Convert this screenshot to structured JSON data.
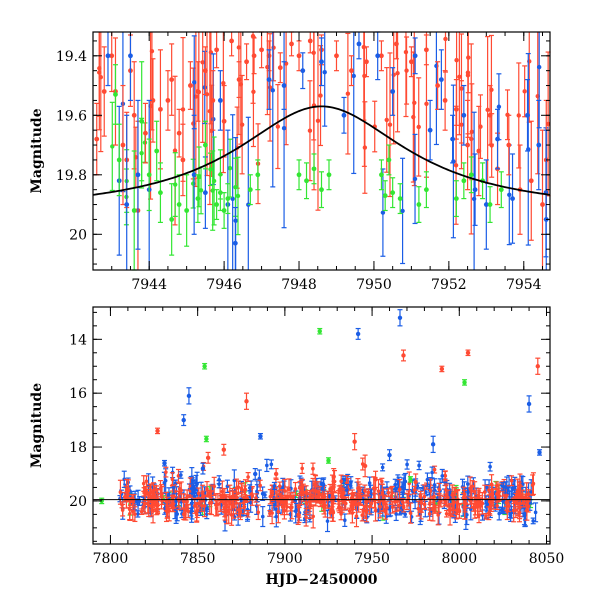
{
  "colors": {
    "red": "#ff4a33",
    "blue": "#1a5de6",
    "green": "#33e633",
    "model": "#000000"
  },
  "chart_data": [
    {
      "type": "scatter",
      "title": "",
      "xlabel": "",
      "ylabel": "Magnitude",
      "xlim": [
        7942.5,
        7954.7
      ],
      "ylim": [
        20.12,
        19.32
      ],
      "y_inverted": true,
      "xticks": [
        "7944",
        "7946",
        "7948",
        "7950",
        "7952",
        "7954"
      ],
      "yticks": [
        "19.4",
        "19.6",
        "19.8",
        "20"
      ],
      "model_curve": {
        "peak_x": 7948.6,
        "peak_mag": 19.57,
        "baseline_mag": 19.93,
        "width": 2.8
      },
      "series": [
        {
          "color": "red",
          "points": [
            [
              7942.6,
              19.68,
              0.12
            ],
            [
              7942.8,
              19.52,
              0.15
            ],
            [
              7943.0,
              19.4,
              0.12
            ],
            [
              7943.1,
              19.52,
              0.18
            ],
            [
              7943.3,
              19.7,
              0.2
            ],
            [
              7943.4,
              19.75,
              0.16
            ],
            [
              7943.5,
              19.45,
              0.12
            ],
            [
              7943.6,
              19.6,
              0.18
            ],
            [
              7943.7,
              19.92,
              0.3
            ],
            [
              7943.9,
              19.66,
              0.1
            ],
            [
              7944.1,
              19.55,
              0.14
            ],
            [
              7944.3,
              19.58,
              0.2
            ],
            [
              7944.5,
              19.55,
              0.1
            ],
            [
              7944.6,
              19.48,
              0.12
            ],
            [
              7944.8,
              19.66,
              0.08
            ],
            [
              7944.9,
              19.75,
              0.12
            ],
            [
              7945.1,
              19.5,
              0.08
            ],
            [
              7945.3,
              19.52,
              0.1
            ],
            [
              7945.5,
              19.45,
              0.08
            ],
            [
              7945.7,
              19.55,
              0.1
            ],
            [
              7945.8,
              19.38,
              0.06
            ],
            [
              7946.0,
              19.62,
              0.12
            ],
            [
              7946.2,
              19.35,
              0.05
            ],
            [
              7946.4,
              19.48,
              0.06
            ],
            [
              7946.6,
              19.42,
              0.06
            ],
            [
              7946.8,
              19.4,
              0.06
            ],
            [
              7947.0,
              19.38,
              0.06
            ],
            [
              7947.2,
              19.4,
              0.05
            ],
            [
              7947.5,
              19.44,
              0.05
            ],
            [
              7947.8,
              19.36,
              0.04
            ],
            [
              7948.0,
              19.4,
              0.05
            ],
            [
              7948.3,
              19.35,
              0.04
            ],
            [
              7948.6,
              19.38,
              0.05
            ],
            [
              7949.0,
              19.4,
              0.05
            ],
            [
              7949.4,
              19.45,
              0.05
            ],
            [
              7949.8,
              19.42,
              0.05
            ],
            [
              7950.2,
              19.4,
              0.05
            ],
            [
              7950.6,
              19.36,
              0.05
            ],
            [
              7951.0,
              19.42,
              0.05
            ],
            [
              7951.4,
              19.38,
              0.05
            ],
            [
              7951.7,
              19.5,
              0.08
            ],
            [
              7951.9,
              19.55,
              0.1
            ],
            [
              7952.2,
              19.58,
              0.1
            ],
            [
              7952.5,
              19.7,
              0.15
            ],
            [
              7952.8,
              19.72,
              0.15
            ],
            [
              7953.1,
              19.6,
              0.1
            ],
            [
              7953.3,
              19.78,
              0.12
            ],
            [
              7953.6,
              19.7,
              0.1
            ],
            [
              7953.9,
              19.85,
              0.15
            ],
            [
              7954.2,
              19.82,
              0.2
            ],
            [
              7954.5,
              19.9,
              0.25
            ],
            [
              7954.6,
              19.75,
              0.2
            ]
          ]
        },
        {
          "color": "blue",
          "points": [
            [
              7942.9,
              19.4,
              0.1
            ],
            [
              7943.2,
              19.82,
              0.25
            ],
            [
              7943.4,
              19.9,
              0.3
            ],
            [
              7943.5,
              19.4,
              0.15
            ],
            [
              7943.7,
              19.8,
              0.25
            ],
            [
              7944.0,
              19.85,
              0.3
            ],
            [
              7945.2,
              19.8,
              0.2
            ],
            [
              7945.5,
              19.86,
              0.12
            ],
            [
              7945.9,
              19.55,
              0.1
            ],
            [
              7946.1,
              19.9,
              0.25
            ],
            [
              7946.3,
              20.03,
              0.12
            ],
            [
              7947.2,
              19.48,
              0.1
            ],
            [
              7947.6,
              19.5,
              0.08
            ],
            [
              7948.1,
              19.45,
              0.06
            ],
            [
              7948.6,
              19.42,
              0.08
            ],
            [
              7949.2,
              19.6,
              0.06
            ],
            [
              7949.6,
              19.36,
              0.05
            ],
            [
              7950.1,
              19.4,
              0.08
            ],
            [
              7950.5,
              19.52,
              0.08
            ],
            [
              7951.1,
              19.4,
              0.06
            ],
            [
              7951.5,
              19.65,
              0.1
            ],
            [
              7951.8,
              19.48,
              0.1
            ],
            [
              7952.1,
              19.68,
              0.08
            ],
            [
              7952.4,
              19.6,
              0.1
            ],
            [
              7952.7,
              19.85,
              0.12
            ],
            [
              7953.0,
              19.9,
              0.15
            ],
            [
              7953.3,
              19.68,
              0.1
            ],
            [
              7953.7,
              19.88,
              0.15
            ],
            [
              7954.1,
              19.6,
              0.12
            ],
            [
              7954.4,
              19.7,
              0.15
            ],
            [
              7954.6,
              19.95,
              0.3
            ]
          ]
        },
        {
          "color": "green",
          "points": [
            [
              7943.1,
              19.53,
              0.1
            ],
            [
              7943.2,
              19.75,
              0.12
            ],
            [
              7943.6,
              19.92,
              0.2
            ],
            [
              7943.8,
              19.62,
              0.2
            ],
            [
              7944.0,
              19.8,
              0.12
            ],
            [
              7944.2,
              19.72,
              0.1
            ],
            [
              7944.3,
              19.86,
              0.1
            ],
            [
              7944.6,
              19.95,
              0.12
            ],
            [
              7944.8,
              19.9,
              0.1
            ],
            [
              7945.0,
              19.92,
              0.12
            ],
            [
              7945.3,
              19.88,
              0.08
            ],
            [
              7945.5,
              19.7,
              0.08
            ],
            [
              7945.8,
              19.9,
              0.05
            ],
            [
              7945.9,
              19.86,
              0.06
            ],
            [
              7946.0,
              19.92,
              0.06
            ],
            [
              7946.1,
              19.88,
              0.05
            ],
            [
              7946.7,
              19.85,
              0.05
            ],
            [
              7946.9,
              19.8,
              0.05
            ],
            [
              7948.0,
              19.8,
              0.05
            ],
            [
              7948.2,
              19.82,
              0.06
            ],
            [
              7948.4,
              19.78,
              0.05
            ],
            [
              7948.6,
              19.85,
              0.06
            ],
            [
              7948.8,
              19.8,
              0.05
            ],
            [
              7950.2,
              19.8,
              0.05
            ],
            [
              7950.3,
              19.87,
              0.05
            ],
            [
              7950.4,
              19.75,
              0.05
            ],
            [
              7950.5,
              19.86,
              0.05
            ],
            [
              7950.7,
              19.88,
              0.05
            ],
            [
              7951.2,
              19.9,
              0.06
            ],
            [
              7951.4,
              19.85,
              0.06
            ],
            [
              7952.2,
              19.88,
              0.06
            ],
            [
              7952.4,
              19.82,
              0.06
            ],
            [
              7952.6,
              19.8,
              0.06
            ],
            [
              7952.9,
              19.82,
              0.06
            ],
            [
              7953.1,
              19.9,
              0.06
            ],
            [
              7953.4,
              19.85,
              0.06
            ]
          ]
        }
      ]
    },
    {
      "type": "scatter",
      "title": "",
      "xlabel": "HJD−2450000",
      "ylabel": "Magnitude",
      "xlim": [
        7790,
        8052
      ],
      "ylim": [
        21.6,
        12.8
      ],
      "y_inverted": true,
      "baseline_mag": 19.95,
      "xticks": [
        "7800",
        "7850",
        "7900",
        "7950",
        "8000",
        "8050"
      ],
      "yticks": [
        "14",
        "16",
        "18",
        "20"
      ],
      "series": [
        {
          "color": "red",
          "points": [
            [
              7827,
              17.4,
              0.1
            ],
            [
              7856,
              18.4,
              0.2
            ],
            [
              7865,
              18.1,
              0.2
            ],
            [
              7878,
              16.3,
              0.3
            ],
            [
              7895,
              19.0,
              0.2
            ],
            [
              7910,
              19.5,
              0.3
            ],
            [
              7928,
              19.1,
              0.3
            ],
            [
              7940,
              17.8,
              0.3
            ],
            [
              7946,
              18.7,
              0.4
            ],
            [
              7952,
              19.2,
              0.3
            ],
            [
              7968,
              14.6,
              0.2
            ],
            [
              7975,
              19.3,
              0.3
            ],
            [
              7990,
              15.1,
              0.1
            ],
            [
              8005,
              14.5,
              0.1
            ],
            [
              8045,
              15.0,
              0.3
            ]
          ]
        },
        {
          "color": "blue",
          "points": [
            [
              7831,
              18.6,
              0.1
            ],
            [
              7842,
              17.0,
              0.2
            ],
            [
              7845,
              16.1,
              0.3
            ],
            [
              7853,
              18.8,
              0.2
            ],
            [
              7883,
              19.0,
              0.2
            ],
            [
              7886,
              17.6,
              0.1
            ],
            [
              7942,
              13.8,
              0.2
            ],
            [
              7966,
              13.2,
              0.3
            ],
            [
              7985,
              17.9,
              0.3
            ],
            [
              8040,
              16.4,
              0.3
            ],
            [
              8046,
              18.2,
              0.1
            ],
            [
              7922,
              19.4,
              0.2
            ],
            [
              7960,
              18.3,
              0.2
            ]
          ]
        },
        {
          "color": "green",
          "points": [
            [
              7795,
              20.0,
              0.1
            ],
            [
              7854,
              15.0,
              0.1
            ],
            [
              7855,
              17.7,
              0.1
            ],
            [
              7920,
              13.7,
              0.1
            ],
            [
              7925,
              18.5,
              0.1
            ],
            [
              7972,
              19.2,
              0.1
            ],
            [
              8003,
              15.6,
              0.1
            ]
          ]
        }
      ]
    }
  ]
}
